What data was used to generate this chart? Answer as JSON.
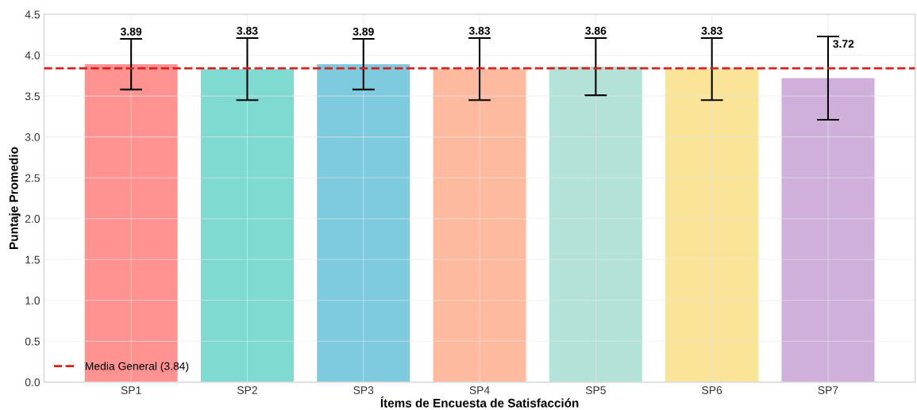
{
  "chart_data": {
    "type": "bar",
    "xlabel": "Ítems de Encuesta de Satisfacción",
    "ylabel": "Puntaje Promedio",
    "categories": [
      "SP1",
      "SP2",
      "SP3",
      "SP4",
      "SP5",
      "SP6",
      "SP7"
    ],
    "values": [
      3.89,
      3.83,
      3.89,
      3.83,
      3.86,
      3.83,
      3.72
    ],
    "errors": [
      0.31,
      0.38,
      0.31,
      0.38,
      0.35,
      0.38,
      0.51
    ],
    "colors": [
      "#fe9392",
      "#7fdad2",
      "#7ecadf",
      "#feba9e",
      "#b3e2d8",
      "#f9e497",
      "#ceb0db"
    ],
    "ylim": [
      0,
      4.5
    ],
    "yticks": [
      {
        "value": 0,
        "label": "0.0"
      },
      {
        "value": 0.5,
        "label": "0.5"
      },
      {
        "value": 1,
        "label": "1.0"
      },
      {
        "value": 1.5,
        "label": "1.5"
      },
      {
        "value": 2,
        "label": "2.0"
      },
      {
        "value": 2.5,
        "label": "2.5"
      },
      {
        "value": 3,
        "label": "3.0"
      },
      {
        "value": 3.5,
        "label": "3.5"
      },
      {
        "value": 4,
        "label": "4.0"
      },
      {
        "value": 4.5,
        "label": "4.5"
      }
    ],
    "ref_lines": [
      {
        "axis": "y",
        "value": 3.84,
        "label": "Media General (3.84)",
        "color": "#dd1c1c",
        "line_style": "dashed"
      }
    ],
    "data_labels": true,
    "grid": true,
    "legend": "lower left"
  }
}
